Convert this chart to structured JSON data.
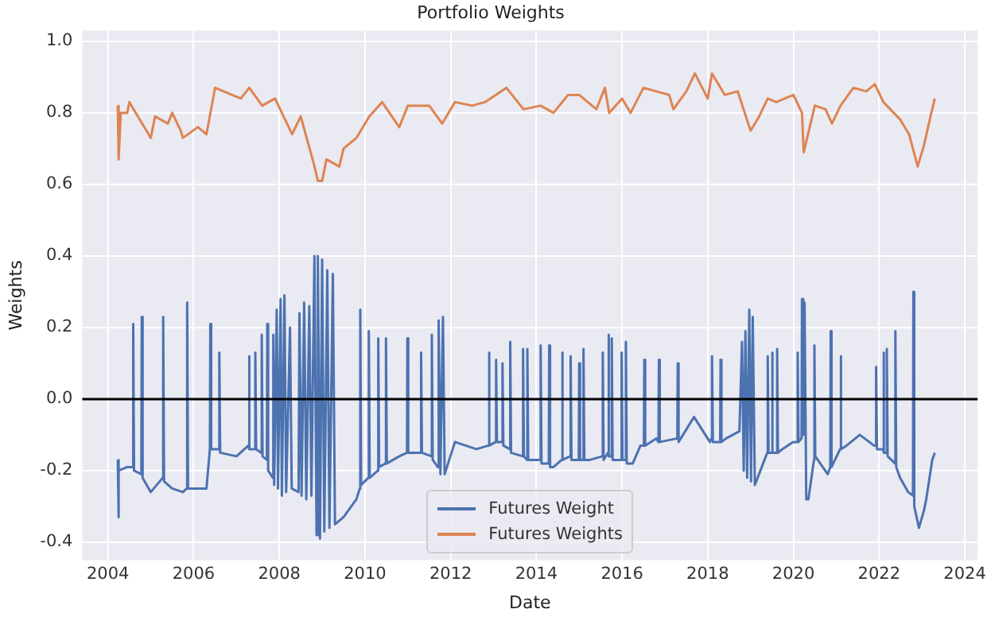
{
  "chart_data": {
    "type": "line",
    "title": "Portfolio Weights",
    "xlabel": "Date",
    "ylabel": "Weights",
    "xlim": [
      2003.4,
      2024.3
    ],
    "xticks": [
      2004,
      2006,
      2008,
      2010,
      2012,
      2014,
      2016,
      2018,
      2020,
      2022,
      2024
    ],
    "ylim": [
      -0.45,
      1.03
    ],
    "yticks": [
      -0.4,
      -0.2,
      {
        "value": 0,
        "label": "0.0"
      },
      0.2,
      0.4,
      0.6,
      0.8,
      {
        "value": 1,
        "label": "1.0"
      }
    ],
    "grid": true,
    "legend": "bottom",
    "marker": "none",
    "line_style": "solid",
    "ref_lines": [
      {
        "axis": "y",
        "value": 0,
        "color": "#000000"
      }
    ],
    "series": [
      {
        "name": "Futures Weight",
        "color": "#4c72b0",
        "x": [
          2004.23,
          2004.24,
          2004.26,
          2004.45,
          2004.58,
          2004.59,
          2004.61,
          2004.78,
          2004.79,
          2004.81,
          2005.0,
          2005.28,
          2005.29,
          2005.31,
          2005.5,
          2005.75,
          2005.84,
          2005.85,
          2005.87,
          2006.3,
          2006.38,
          2006.39,
          2006.41,
          2006.59,
          2006.6,
          2006.62,
          2007.0,
          2007.28,
          2007.29,
          2007.31,
          2007.43,
          2007.44,
          2007.46,
          2007.58,
          2007.59,
          2007.61,
          2007.71,
          2007.72,
          2007.74,
          2007.85,
          2007.86,
          2007.88,
          2007.94,
          2007.97,
          2008.03,
          2008.06,
          2008.12,
          2008.16,
          2008.25,
          2008.29,
          2008.45,
          2008.47,
          2008.52,
          2008.58,
          2008.63,
          2008.7,
          2008.75,
          2008.82,
          2008.87,
          2008.9,
          2008.95,
          2009.0,
          2009.05,
          2009.12,
          2009.17,
          2009.25,
          2009.3,
          2009.5,
          2009.8,
          2009.88,
          2009.89,
          2009.91,
          2010.08,
          2010.09,
          2010.11,
          2010.3,
          2010.31,
          2010.33,
          2010.48,
          2010.49,
          2010.51,
          2010.8,
          2010.98,
          2010.99,
          2011.01,
          2011.3,
          2011.31,
          2011.33,
          2011.55,
          2011.56,
          2011.58,
          2011.7,
          2011.72,
          2011.76,
          2011.82,
          2011.86,
          2012.1,
          2012.6,
          2012.88,
          2012.89,
          2012.91,
          2013.05,
          2013.06,
          2013.08,
          2013.2,
          2013.21,
          2013.23,
          2013.38,
          2013.39,
          2013.41,
          2013.68,
          2013.69,
          2013.71,
          2013.78,
          2013.79,
          2013.81,
          2014.09,
          2014.1,
          2014.12,
          2014.29,
          2014.3,
          2014.32,
          2014.4,
          2014.59,
          2014.6,
          2014.62,
          2014.79,
          2014.8,
          2014.82,
          2014.99,
          2015.0,
          2015.02,
          2015.09,
          2015.1,
          2015.12,
          2015.25,
          2015.54,
          2015.55,
          2015.57,
          2015.67,
          2015.68,
          2015.7,
          2015.75,
          2015.76,
          2015.78,
          2015.98,
          2015.99,
          2016.01,
          2016.08,
          2016.09,
          2016.11,
          2016.25,
          2016.43,
          2016.51,
          2016.52,
          2016.54,
          2016.8,
          2016.85,
          2016.86,
          2016.88,
          2017.29,
          2017.3,
          2017.32,
          2017.68,
          2018.05,
          2018.09,
          2018.1,
          2018.12,
          2018.29,
          2018.3,
          2018.32,
          2018.43,
          2018.74,
          2018.8,
          2018.84,
          2018.88,
          2018.92,
          2018.97,
          2019.01,
          2019.05,
          2019.1,
          2019.39,
          2019.4,
          2019.42,
          2019.49,
          2019.5,
          2019.52,
          2019.61,
          2019.62,
          2019.64,
          2019.74,
          2019.99,
          2020.09,
          2020.1,
          2020.12,
          2020.19,
          2020.2,
          2020.23,
          2020.26,
          2020.3,
          2020.35,
          2020.48,
          2020.49,
          2020.51,
          2020.8,
          2020.86,
          2020.87,
          2020.89,
          2021.09,
          2021.1,
          2021.12,
          2021.24,
          2021.55,
          2021.88,
          2021.92,
          2021.93,
          2021.95,
          2022.09,
          2022.1,
          2022.12,
          2022.17,
          2022.18,
          2022.2,
          2022.37,
          2022.38,
          2022.4,
          2022.49,
          2022.68,
          2022.79,
          2022.8,
          2022.82,
          2022.93,
          2023.05,
          2023.1,
          2023.24,
          2023.3
        ],
        "values": [
          -0.17,
          -0.33,
          -0.2,
          -0.19,
          -0.19,
          0.21,
          -0.2,
          -0.21,
          0.23,
          -0.22,
          -0.26,
          -0.22,
          0.23,
          -0.23,
          -0.25,
          -0.26,
          -0.25,
          0.27,
          -0.25,
          -0.25,
          -0.14,
          0.21,
          -0.14,
          -0.14,
          0.13,
          -0.15,
          -0.16,
          -0.13,
          0.12,
          -0.14,
          -0.14,
          0.13,
          -0.14,
          -0.15,
          0.18,
          -0.16,
          -0.17,
          0.21,
          -0.2,
          -0.22,
          0.18,
          -0.24,
          0.25,
          -0.25,
          0.28,
          -0.27,
          0.29,
          -0.26,
          0.2,
          -0.25,
          -0.26,
          0.24,
          -0.27,
          0.27,
          -0.28,
          0.26,
          -0.27,
          0.4,
          -0.38,
          0.4,
          -0.39,
          0.39,
          -0.37,
          0.36,
          -0.36,
          0.35,
          -0.35,
          -0.33,
          -0.28,
          -0.25,
          0.25,
          -0.24,
          -0.22,
          0.19,
          -0.22,
          -0.2,
          0.17,
          -0.19,
          -0.18,
          0.17,
          -0.18,
          -0.16,
          -0.15,
          0.17,
          -0.15,
          -0.15,
          0.13,
          -0.15,
          -0.16,
          0.18,
          -0.17,
          -0.19,
          0.22,
          -0.21,
          0.23,
          -0.21,
          -0.12,
          -0.14,
          -0.13,
          0.13,
          -0.13,
          -0.12,
          0.11,
          -0.12,
          -0.12,
          0.1,
          -0.13,
          -0.14,
          0.16,
          -0.15,
          -0.16,
          0.14,
          -0.16,
          -0.17,
          0.14,
          -0.17,
          -0.17,
          0.15,
          -0.18,
          -0.18,
          0.15,
          -0.19,
          -0.19,
          -0.17,
          0.13,
          -0.17,
          -0.16,
          0.12,
          -0.17,
          -0.17,
          0.1,
          -0.17,
          -0.17,
          0.14,
          -0.17,
          -0.17,
          -0.16,
          0.13,
          -0.17,
          -0.15,
          0.18,
          -0.16,
          -0.16,
          0.17,
          -0.17,
          -0.17,
          0.13,
          -0.17,
          -0.17,
          0.16,
          -0.18,
          -0.18,
          -0.13,
          -0.13,
          0.11,
          -0.13,
          -0.11,
          -0.12,
          0.11,
          -0.12,
          -0.11,
          0.1,
          -0.12,
          -0.05,
          -0.12,
          -0.11,
          0.12,
          -0.12,
          -0.12,
          0.11,
          -0.12,
          -0.11,
          -0.09,
          0.16,
          -0.2,
          0.19,
          -0.22,
          0.25,
          -0.23,
          0.23,
          -0.24,
          -0.15,
          0.12,
          -0.15,
          -0.15,
          0.13,
          -0.15,
          -0.15,
          0.14,
          -0.15,
          -0.14,
          -0.12,
          -0.12,
          0.13,
          -0.12,
          -0.11,
          0.28,
          -0.1,
          0.27,
          -0.28,
          -0.28,
          -0.17,
          0.15,
          -0.16,
          -0.21,
          -0.19,
          0.19,
          -0.19,
          -0.14,
          0.12,
          -0.14,
          -0.13,
          -0.1,
          -0.13,
          -0.13,
          0.09,
          -0.14,
          -0.14,
          0.13,
          -0.15,
          -0.15,
          0.14,
          -0.16,
          -0.18,
          0.19,
          -0.19,
          -0.22,
          -0.26,
          -0.27,
          0.3,
          -0.3,
          -0.36,
          -0.31,
          -0.28,
          -0.17,
          -0.15
        ]
      },
      {
        "name": "Futures Weights",
        "color": "#dd8452",
        "x": [
          2004.23,
          2004.25,
          2004.3,
          2004.45,
          2004.5,
          2004.8,
          2005.0,
          2005.1,
          2005.4,
          2005.5,
          2005.7,
          2005.75,
          2006.1,
          2006.3,
          2006.5,
          2006.9,
          2007.1,
          2007.3,
          2007.6,
          2007.9,
          2008.1,
          2008.3,
          2008.5,
          2008.8,
          2008.9,
          2009.0,
          2009.1,
          2009.4,
          2009.5,
          2009.8,
          2010.1,
          2010.4,
          2010.8,
          2011.0,
          2011.5,
          2011.8,
          2012.1,
          2012.5,
          2012.8,
          2013.3,
          2013.7,
          2014.1,
          2014.4,
          2014.74,
          2015.0,
          2015.4,
          2015.6,
          2015.7,
          2016.0,
          2016.2,
          2016.5,
          2017.1,
          2017.2,
          2017.5,
          2017.7,
          2018.0,
          2018.1,
          2018.4,
          2018.7,
          2019.0,
          2019.2,
          2019.4,
          2019.6,
          2020.0,
          2020.2,
          2020.24,
          2020.5,
          2020.75,
          2020.9,
          2021.1,
          2021.4,
          2021.7,
          2021.9,
          2022.1,
          2022.5,
          2022.7,
          2022.9,
          2023.05,
          2023.2,
          2023.3
        ],
        "values": [
          0.82,
          0.67,
          0.8,
          0.8,
          0.83,
          0.77,
          0.73,
          0.79,
          0.77,
          0.8,
          0.75,
          0.73,
          0.76,
          0.74,
          0.87,
          0.85,
          0.84,
          0.87,
          0.82,
          0.84,
          0.79,
          0.74,
          0.79,
          0.66,
          0.61,
          0.61,
          0.67,
          0.65,
          0.7,
          0.73,
          0.79,
          0.83,
          0.76,
          0.82,
          0.82,
          0.77,
          0.83,
          0.82,
          0.83,
          0.87,
          0.81,
          0.82,
          0.8,
          0.85,
          0.85,
          0.81,
          0.87,
          0.8,
          0.84,
          0.8,
          0.87,
          0.85,
          0.81,
          0.86,
          0.91,
          0.84,
          0.91,
          0.85,
          0.86,
          0.75,
          0.79,
          0.84,
          0.83,
          0.85,
          0.8,
          0.69,
          0.82,
          0.81,
          0.77,
          0.82,
          0.87,
          0.86,
          0.88,
          0.83,
          0.78,
          0.74,
          0.65,
          0.71,
          0.79,
          0.84
        ]
      }
    ]
  }
}
